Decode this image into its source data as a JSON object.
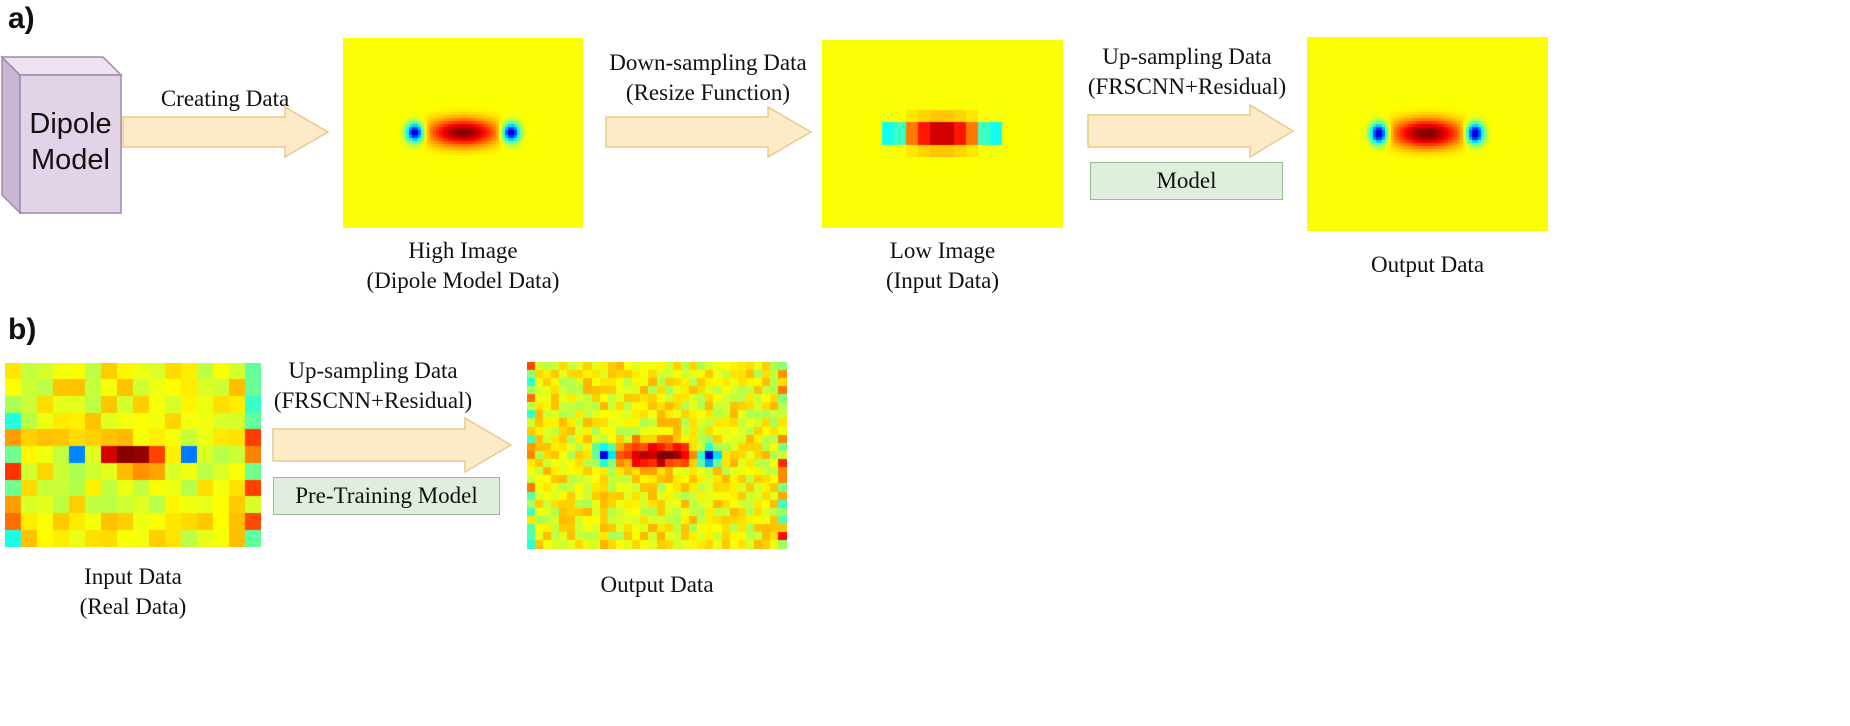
{
  "panel_a": {
    "label": "a)",
    "source_box": {
      "line1": "Dipole",
      "line2": "Model"
    },
    "arrow1_label": "Creating Data",
    "arrow2_label": {
      "line1": "Down-sampling Data",
      "line2": "(Resize Function)"
    },
    "arrow3_label": {
      "line1": "Up-sampling Data",
      "line2": "(FRSCNN+Residual)"
    },
    "model_box": "Model",
    "image1_caption": {
      "line1": "High Image",
      "line2": "(Dipole Model Data)"
    },
    "image2_caption": {
      "line1": "Low Image",
      "line2": "(Input Data)"
    },
    "image3_caption": {
      "line1": "Output Data"
    }
  },
  "panel_b": {
    "label": "b)",
    "arrow_label": {
      "line1": "Up-sampling Data",
      "line2": "(FRSCNN+Residual)"
    },
    "model_box": "Pre-Training Model",
    "image1_caption": {
      "line1": "Input Data",
      "line2": "(Real Data)"
    },
    "image2_caption": {
      "line1": "Output Data"
    }
  },
  "colors": {
    "arrow_fill": "#fcebc6",
    "arrow_stroke": "#e9c98b",
    "cube_front": "#e2d4e8",
    "cube_side": "#c9b6d3",
    "cube_top": "#ede2f1",
    "model_box_fill": "#dfeedd",
    "model_box_stroke": "#97bf93"
  }
}
